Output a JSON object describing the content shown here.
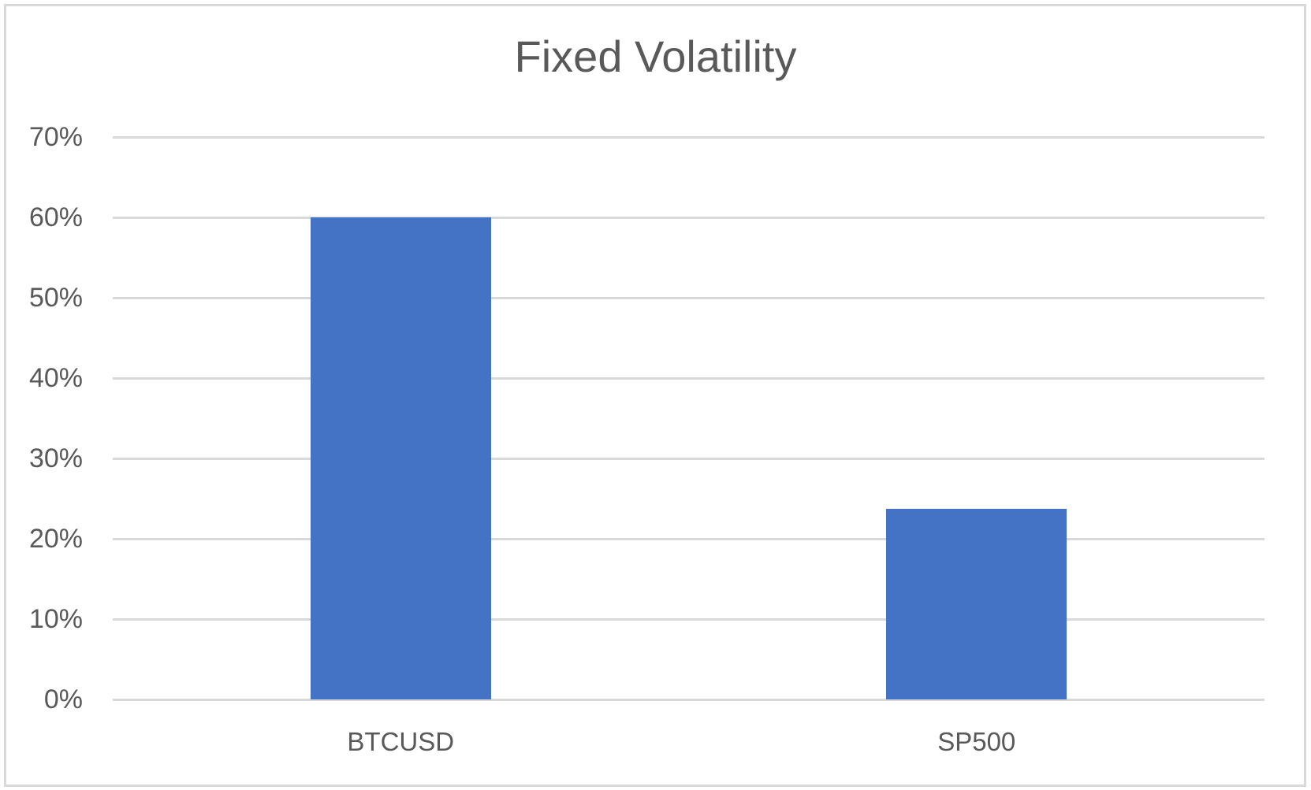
{
  "chart_data": {
    "type": "bar",
    "title": "Fixed Volatility",
    "categories": [
      "BTCUSD",
      "SP500"
    ],
    "values": [
      0.6,
      0.237
    ],
    "series": [
      {
        "name": "Fixed Volatility",
        "values": [
          0.6,
          0.237
        ]
      }
    ],
    "xlabel": "",
    "ylabel": "",
    "ylim": [
      0,
      0.7
    ],
    "yticks": [
      "0%",
      "10%",
      "20%",
      "30%",
      "40%",
      "50%",
      "60%",
      "70%"
    ],
    "grid": true,
    "legend": null,
    "colors": {
      "bar": "#4472c4",
      "gridline": "#d9d9d9",
      "text": "#595959",
      "border": "#d9d9d9"
    }
  },
  "title": "Fixed Volatility",
  "y_axis": {
    "ticks": [
      "0%",
      "10%",
      "20%",
      "30%",
      "40%",
      "50%",
      "60%",
      "70%"
    ]
  },
  "x_axis": {
    "labels": [
      "BTCUSD",
      "SP500"
    ]
  }
}
